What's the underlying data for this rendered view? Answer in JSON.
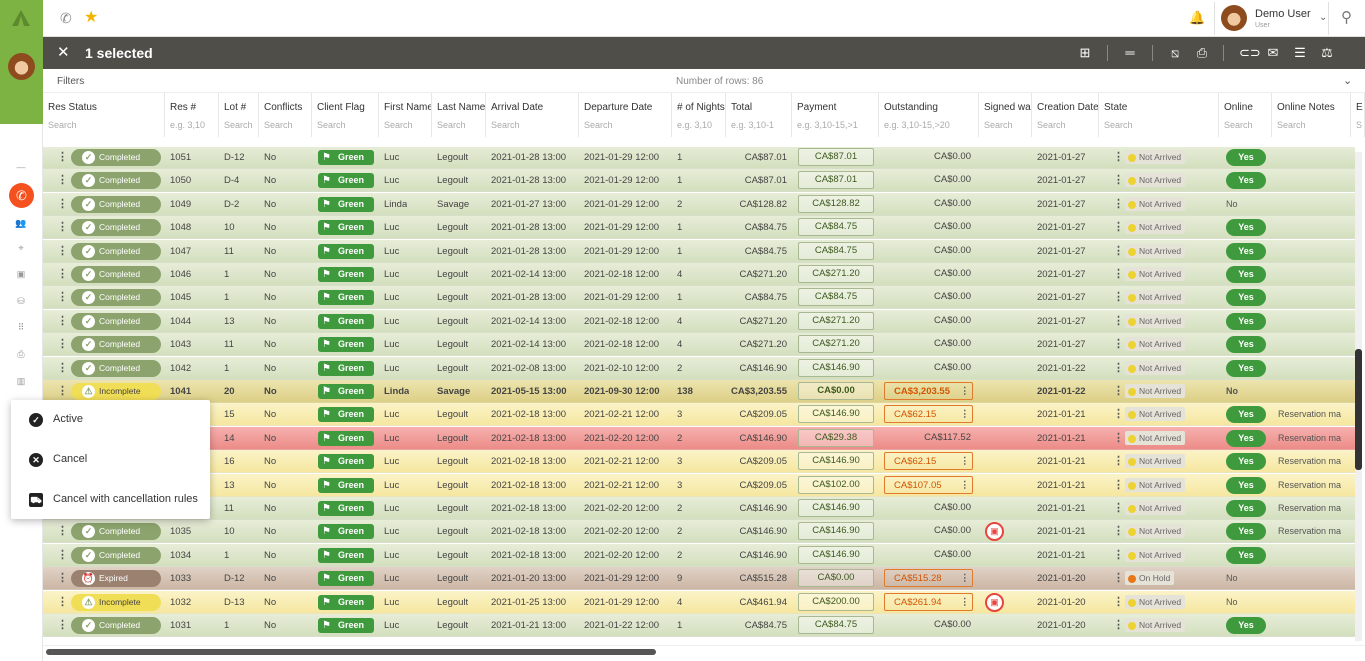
{
  "topbar": {
    "user_name": "Demo User",
    "user_role": "User"
  },
  "selection": {
    "label": "1 selected"
  },
  "filters": {
    "label": "Filters",
    "rows_label": "Number of rows: 86"
  },
  "columns": [
    {
      "title": "Res Status",
      "search": "Search"
    },
    {
      "title": "Res #",
      "search": "e.g. 3,10"
    },
    {
      "title": "Lot #",
      "search": "Search"
    },
    {
      "title": "Conflicts",
      "search": "Search"
    },
    {
      "title": "Client Flag",
      "search": "Search"
    },
    {
      "title": "First Name",
      "search": "Search"
    },
    {
      "title": "Last Name",
      "search": "Search"
    },
    {
      "title": "Arrival Date",
      "search": "Search"
    },
    {
      "title": "Departure Date",
      "search": "Search"
    },
    {
      "title": "# of Nights",
      "search": "e.g. 3,10"
    },
    {
      "title": "Total",
      "search": "e.g. 3,10-1"
    },
    {
      "title": "Payment",
      "search": "e.g. 3,10-15,>1"
    },
    {
      "title": "Outstanding",
      "search": "e.g. 3,10-15,>20"
    },
    {
      "title": "Signed wai",
      "search": "Search"
    },
    {
      "title": "Creation Date",
      "search": "Search"
    },
    {
      "title": "State",
      "search": "Search"
    },
    {
      "title": "Online",
      "search": "Search"
    },
    {
      "title": "Online Notes",
      "search": "Search"
    },
    {
      "title": "E",
      "search": "S"
    }
  ],
  "rows": [
    {
      "tone": "green",
      "status": "Completed",
      "res": "1051",
      "lot": "D-12",
      "conf": "No",
      "flag": "Green",
      "first": "Luc",
      "last": "Legoult",
      "arr": "2021-01-28 13:00",
      "dep": "2021-01-29 12:00",
      "nights": "1",
      "total": "CA$87.01",
      "pay": "CA$87.01",
      "out": "CA$0.00",
      "outbox": false,
      "waiver": false,
      "created": "2021-01-27",
      "state": "Not Arrived",
      "online": "Yes",
      "note": ""
    },
    {
      "tone": "green",
      "status": "Completed",
      "res": "1050",
      "lot": "D-4",
      "conf": "No",
      "flag": "Green",
      "first": "Luc",
      "last": "Legoult",
      "arr": "2021-01-28 13:00",
      "dep": "2021-01-29 12:00",
      "nights": "1",
      "total": "CA$87.01",
      "pay": "CA$87.01",
      "out": "CA$0.00",
      "outbox": false,
      "waiver": false,
      "created": "2021-01-27",
      "state": "Not Arrived",
      "online": "Yes",
      "note": ""
    },
    {
      "tone": "green",
      "status": "Completed",
      "res": "1049",
      "lot": "D-2",
      "conf": "No",
      "flag": "Green",
      "first": "Linda",
      "last": "Savage",
      "arr": "2021-01-27 13:00",
      "dep": "2021-01-29 12:00",
      "nights": "2",
      "total": "CA$128.82",
      "pay": "CA$128.82",
      "out": "CA$0.00",
      "outbox": false,
      "waiver": false,
      "created": "2021-01-27",
      "state": "Not Arrived",
      "online": "No",
      "note": ""
    },
    {
      "tone": "green",
      "status": "Completed",
      "res": "1048",
      "lot": "10",
      "conf": "No",
      "flag": "Green",
      "first": "Luc",
      "last": "Legoult",
      "arr": "2021-01-28 13:00",
      "dep": "2021-01-29 12:00",
      "nights": "1",
      "total": "CA$84.75",
      "pay": "CA$84.75",
      "out": "CA$0.00",
      "outbox": false,
      "waiver": false,
      "created": "2021-01-27",
      "state": "Not Arrived",
      "online": "Yes",
      "note": ""
    },
    {
      "tone": "green",
      "status": "Completed",
      "res": "1047",
      "lot": "11",
      "conf": "No",
      "flag": "Green",
      "first": "Luc",
      "last": "Legoult",
      "arr": "2021-01-28 13:00",
      "dep": "2021-01-29 12:00",
      "nights": "1",
      "total": "CA$84.75",
      "pay": "CA$84.75",
      "out": "CA$0.00",
      "outbox": false,
      "waiver": false,
      "created": "2021-01-27",
      "state": "Not Arrived",
      "online": "Yes",
      "note": ""
    },
    {
      "tone": "green",
      "status": "Completed",
      "res": "1046",
      "lot": "1",
      "conf": "No",
      "flag": "Green",
      "first": "Luc",
      "last": "Legoult",
      "arr": "2021-02-14 13:00",
      "dep": "2021-02-18 12:00",
      "nights": "4",
      "total": "CA$271.20",
      "pay": "CA$271.20",
      "out": "CA$0.00",
      "outbox": false,
      "waiver": false,
      "created": "2021-01-27",
      "state": "Not Arrived",
      "online": "Yes",
      "note": ""
    },
    {
      "tone": "green",
      "status": "Completed",
      "res": "1045",
      "lot": "1",
      "conf": "No",
      "flag": "Green",
      "first": "Luc",
      "last": "Legoult",
      "arr": "2021-01-28 13:00",
      "dep": "2021-01-29 12:00",
      "nights": "1",
      "total": "CA$84.75",
      "pay": "CA$84.75",
      "out": "CA$0.00",
      "outbox": false,
      "waiver": false,
      "created": "2021-01-27",
      "state": "Not Arrived",
      "online": "Yes",
      "note": ""
    },
    {
      "tone": "green",
      "status": "Completed",
      "res": "1044",
      "lot": "13",
      "conf": "No",
      "flag": "Green",
      "first": "Luc",
      "last": "Legoult",
      "arr": "2021-02-14 13:00",
      "dep": "2021-02-18 12:00",
      "nights": "4",
      "total": "CA$271.20",
      "pay": "CA$271.20",
      "out": "CA$0.00",
      "outbox": false,
      "waiver": false,
      "created": "2021-01-27",
      "state": "Not Arrived",
      "online": "Yes",
      "note": ""
    },
    {
      "tone": "green",
      "status": "Completed",
      "res": "1043",
      "lot": "11",
      "conf": "No",
      "flag": "Green",
      "first": "Luc",
      "last": "Legoult",
      "arr": "2021-02-14 13:00",
      "dep": "2021-02-18 12:00",
      "nights": "4",
      "total": "CA$271.20",
      "pay": "CA$271.20",
      "out": "CA$0.00",
      "outbox": false,
      "waiver": false,
      "created": "2021-01-27",
      "state": "Not Arrived",
      "online": "Yes",
      "note": ""
    },
    {
      "tone": "green",
      "status": "Completed",
      "res": "1042",
      "lot": "1",
      "conf": "No",
      "flag": "Green",
      "first": "Luc",
      "last": "Legoult",
      "arr": "2021-02-08 13:00",
      "dep": "2021-02-10 12:00",
      "nights": "2",
      "total": "CA$146.90",
      "pay": "CA$146.90",
      "out": "CA$0.00",
      "outbox": false,
      "waiver": false,
      "created": "2021-01-22",
      "state": "Not Arrived",
      "online": "Yes",
      "note": ""
    },
    {
      "tone": "sel",
      "status": "Incomplete",
      "res": "1041",
      "lot": "20",
      "conf": "No",
      "flag": "Green",
      "first": "Linda",
      "last": "Savage",
      "arr": "2021-05-15 13:00",
      "dep": "2021-09-30 12:00",
      "nights": "138",
      "total": "CA$3,203.55",
      "pay": "CA$0.00",
      "out": "CA$3,203.55",
      "outbox": true,
      "waiver": false,
      "created": "2021-01-22",
      "state": "Not Arrived",
      "online": "No",
      "note": ""
    },
    {
      "tone": "yellow",
      "status": "",
      "res": "",
      "lot": "15",
      "conf": "No",
      "flag": "Green",
      "first": "Luc",
      "last": "Legoult",
      "arr": "2021-02-18 13:00",
      "dep": "2021-02-21 12:00",
      "nights": "3",
      "total": "CA$209.05",
      "pay": "CA$146.90",
      "out": "CA$62.15",
      "outbox": true,
      "waiver": false,
      "created": "2021-01-21",
      "state": "Not Arrived",
      "online": "Yes",
      "note": "Reservation ma"
    },
    {
      "tone": "red",
      "status": "",
      "res": "",
      "lot": "14",
      "conf": "No",
      "flag": "Green",
      "first": "Luc",
      "last": "Legoult",
      "arr": "2021-02-18 13:00",
      "dep": "2021-02-20 12:00",
      "nights": "2",
      "total": "CA$146.90",
      "pay": "CA$29.38",
      "out": "CA$117.52",
      "outbox": false,
      "waiver": false,
      "created": "2021-01-21",
      "state": "Not Arrived",
      "online": "Yes",
      "note": "Reservation ma"
    },
    {
      "tone": "yellow",
      "status": "",
      "res": "",
      "lot": "16",
      "conf": "No",
      "flag": "Green",
      "first": "Luc",
      "last": "Legoult",
      "arr": "2021-02-18 13:00",
      "dep": "2021-02-21 12:00",
      "nights": "3",
      "total": "CA$209.05",
      "pay": "CA$146.90",
      "out": "CA$62.15",
      "outbox": true,
      "waiver": false,
      "created": "2021-01-21",
      "state": "Not Arrived",
      "online": "Yes",
      "note": "Reservation ma"
    },
    {
      "tone": "yellow",
      "status": "",
      "res": "",
      "lot": "13",
      "conf": "No",
      "flag": "Green",
      "first": "Luc",
      "last": "Legoult",
      "arr": "2021-02-18 13:00",
      "dep": "2021-02-21 12:00",
      "nights": "3",
      "total": "CA$209.05",
      "pay": "CA$102.00",
      "out": "CA$107.05",
      "outbox": true,
      "waiver": false,
      "created": "2021-01-21",
      "state": "Not Arrived",
      "online": "Yes",
      "note": "Reservation ma"
    },
    {
      "tone": "green",
      "status": "",
      "res": "",
      "lot": "11",
      "conf": "No",
      "flag": "Green",
      "first": "Luc",
      "last": "Legoult",
      "arr": "2021-02-18 13:00",
      "dep": "2021-02-20 12:00",
      "nights": "2",
      "total": "CA$146.90",
      "pay": "CA$146.90",
      "out": "CA$0.00",
      "outbox": false,
      "waiver": false,
      "created": "2021-01-21",
      "state": "Not Arrived",
      "online": "Yes",
      "note": "Reservation ma"
    },
    {
      "tone": "green",
      "status": "Completed",
      "res": "1035",
      "lot": "10",
      "conf": "No",
      "flag": "Green",
      "first": "Luc",
      "last": "Legoult",
      "arr": "2021-02-18 13:00",
      "dep": "2021-02-20 12:00",
      "nights": "2",
      "total": "CA$146.90",
      "pay": "CA$146.90",
      "out": "CA$0.00",
      "outbox": false,
      "waiver": true,
      "created": "2021-01-21",
      "state": "Not Arrived",
      "online": "Yes",
      "note": "Reservation ma"
    },
    {
      "tone": "green",
      "status": "Completed",
      "res": "1034",
      "lot": "1",
      "conf": "No",
      "flag": "Green",
      "first": "Luc",
      "last": "Legoult",
      "arr": "2021-02-18 13:00",
      "dep": "2021-02-20 12:00",
      "nights": "2",
      "total": "CA$146.90",
      "pay": "CA$146.90",
      "out": "CA$0.00",
      "outbox": false,
      "waiver": false,
      "created": "2021-01-21",
      "state": "Not Arrived",
      "online": "Yes",
      "note": ""
    },
    {
      "tone": "brown",
      "status": "Expired",
      "res": "1033",
      "lot": "D-12",
      "conf": "No",
      "flag": "Green",
      "first": "Luc",
      "last": "Legoult",
      "arr": "2021-01-20 13:00",
      "dep": "2021-01-29 12:00",
      "nights": "9",
      "total": "CA$515.28",
      "pay": "CA$0.00",
      "out": "CA$515.28",
      "outbox": true,
      "waiver": false,
      "created": "2021-01-20",
      "state": "On Hold",
      "online": "No",
      "note": ""
    },
    {
      "tone": "yellow",
      "status": "Incomplete",
      "res": "1032",
      "lot": "D-13",
      "conf": "No",
      "flag": "Green",
      "first": "Luc",
      "last": "Legoult",
      "arr": "2021-01-25 13:00",
      "dep": "2021-01-29 12:00",
      "nights": "4",
      "total": "CA$461.94",
      "pay": "CA$200.00",
      "out": "CA$261.94",
      "outbox": true,
      "waiver": true,
      "created": "2021-01-20",
      "state": "Not Arrived",
      "online": "No",
      "note": ""
    },
    {
      "tone": "green",
      "status": "Completed",
      "res": "1031",
      "lot": "1",
      "conf": "No",
      "flag": "Green",
      "first": "Luc",
      "last": "Legoult",
      "arr": "2021-01-21 13:00",
      "dep": "2021-01-22 12:00",
      "nights": "1",
      "total": "CA$84.75",
      "pay": "CA$84.75",
      "out": "CA$0.00",
      "outbox": false,
      "waiver": false,
      "created": "2021-01-20",
      "state": "Not Arrived",
      "online": "Yes",
      "note": ""
    }
  ],
  "menu": {
    "items": [
      {
        "label": "Active",
        "icon": "check-circle-icon"
      },
      {
        "label": "Cancel",
        "icon": "x-circle-icon"
      },
      {
        "label": "Cancel with cancellation rules",
        "icon": "truck-cancel-icon"
      }
    ]
  },
  "colors": {
    "brand_green": "#7cb342",
    "selection_bar": "#504e49",
    "flag_green": "#3f9a3e",
    "alert_orange": "#e07a2c"
  }
}
